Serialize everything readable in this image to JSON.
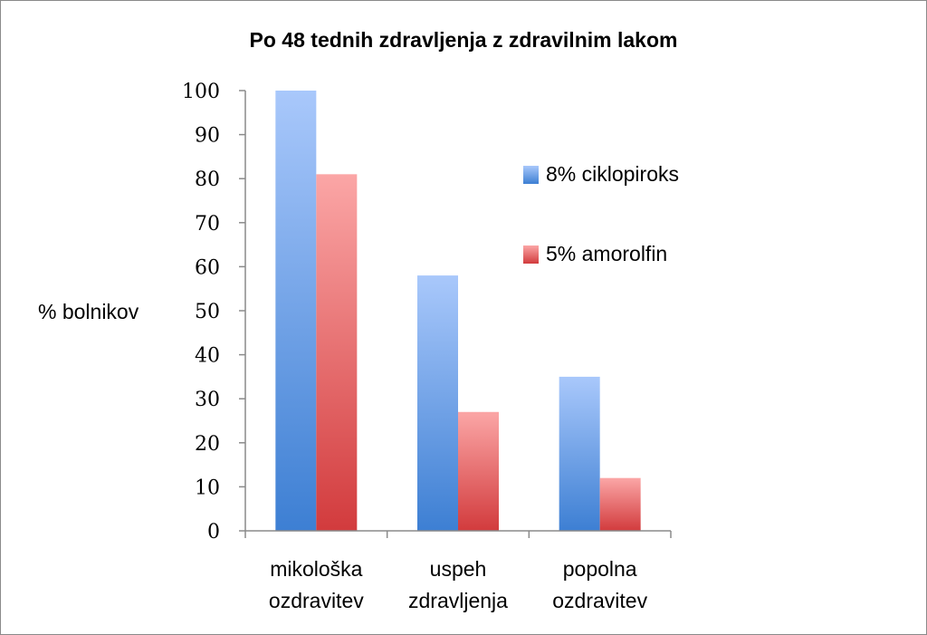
{
  "chart_data": {
    "type": "bar",
    "title": "Po 48 tednih zdravljenja z zdravilnim lakom",
    "ylabel": "% bolnikov",
    "xlabel": "",
    "ylim": [
      0,
      100
    ],
    "yticks": [
      "0",
      "10",
      "20",
      "30",
      "40",
      "50",
      "60",
      "70",
      "80",
      "90",
      "100"
    ],
    "categories": [
      [
        "mikološka",
        "ozdravitev"
      ],
      [
        "uspeh",
        "zdravljenja"
      ],
      [
        "popolna",
        "ozdravitev"
      ]
    ],
    "series": [
      {
        "name": "8% ciklopiroks",
        "values": [
          100,
          58,
          35
        ],
        "color_top": "#a9c8fb",
        "color_bottom": "#3d7fd3"
      },
      {
        "name": "5% amorolfin",
        "values": [
          81,
          27,
          12
        ],
        "color_top": "#fba6a6",
        "color_bottom": "#d23b3d"
      }
    ],
    "grid": false,
    "legend_position": "right"
  }
}
